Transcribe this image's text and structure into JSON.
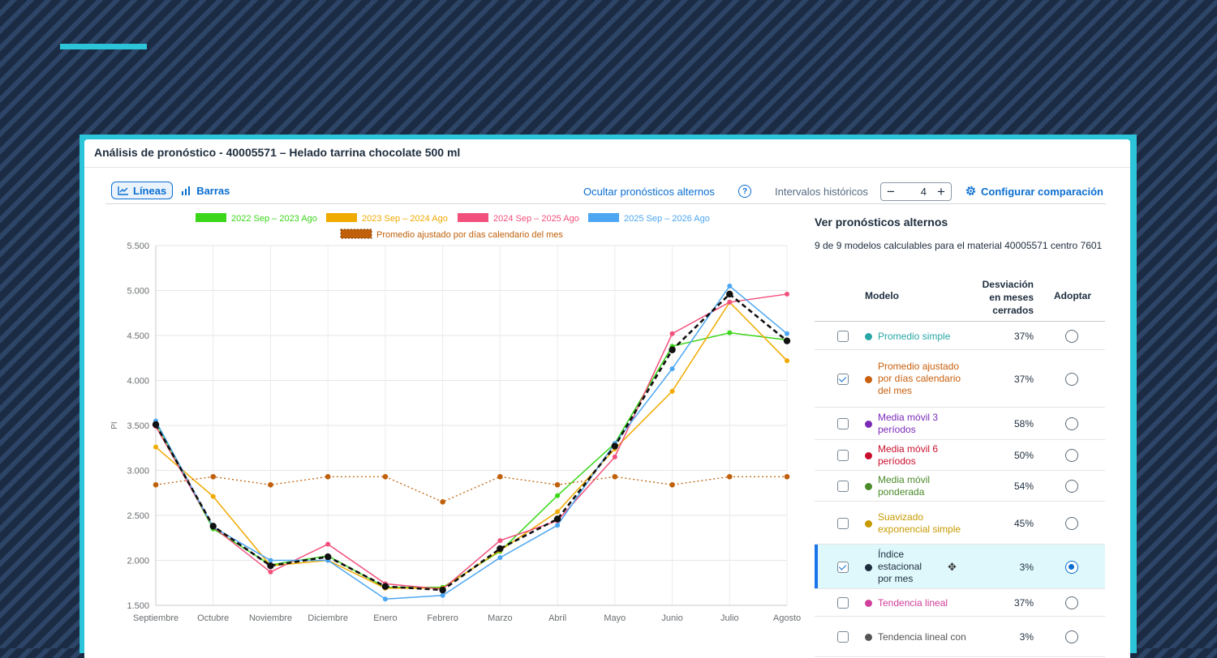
{
  "panel": {
    "title": "Análisis de pronóstico - 40005571 – Helado tarrina chocolate 500 ml"
  },
  "toolbar": {
    "lines_label": "Líneas",
    "bars_label": "Barras",
    "hide_alt_label": "Ocultar pronósticos alternos",
    "hist_label": "Intervalos históricos",
    "hist_value": "4",
    "config_label": "Configurar comparación"
  },
  "chart_data": {
    "type": "line",
    "ylabel": "PI",
    "xlabel": "",
    "categories": [
      "Septiembre",
      "Octubre",
      "Noviembre",
      "Diciembre",
      "Enero",
      "Febrero",
      "Marzo",
      "Abril",
      "Mayo",
      "Junio",
      "Julio",
      "Agosto"
    ],
    "ylim": [
      1500,
      5500
    ],
    "yticks": [
      "5.500",
      "5.000",
      "4.500",
      "4.000",
      "3.500",
      "3.000",
      "2.500",
      "2.000",
      "1.500"
    ],
    "grid": true,
    "legend_position": "top",
    "series": [
      {
        "name": "2022 Sep – 2023 Ago",
        "color": "#3bd61a",
        "values": [
          3530,
          2350,
          1950,
          2050,
          1700,
          1700,
          2100,
          2720,
          3300,
          4380,
          4530,
          4450
        ]
      },
      {
        "name": "2023 Sep – 2024 Ago",
        "color": "#f0aa00",
        "values": [
          3260,
          2710,
          1940,
          2000,
          1690,
          1690,
          2110,
          2540,
          3240,
          3880,
          4870,
          4220
        ]
      },
      {
        "name": "2024 Sep – 2025 Ago",
        "color": "#f2507c",
        "values": [
          3490,
          2370,
          1870,
          2180,
          1740,
          1680,
          2220,
          2440,
          3150,
          4520,
          4870,
          4960
        ]
      },
      {
        "name": "2025 Sep – 2026 Ago",
        "color": "#4ca6f2",
        "values": [
          3550,
          2370,
          2000,
          2000,
          1570,
          1610,
          2030,
          2390,
          3300,
          4130,
          5050,
          4520
        ]
      },
      {
        "name": "Promedio ajustado por días calendario del mes",
        "color": "#c0600a",
        "values": [
          2840,
          2930,
          2840,
          2930,
          2930,
          2650,
          2930,
          2840,
          2930,
          2840,
          2930,
          2930
        ]
      },
      {
        "name": "",
        "color": "#111111",
        "values": [
          3510,
          2380,
          1940,
          2040,
          1710,
          1670,
          2130,
          2460,
          3270,
          4340,
          4960,
          4440
        ]
      }
    ]
  },
  "side": {
    "title": "Ver pronósticos alternos",
    "subtitle": "9 de 9 modelos calculables para el material 40005571 centro 7601",
    "col_model": "Modelo",
    "col_dev": "Desviación en meses cerrados",
    "col_adopt": "Adoptar",
    "rows": [
      {
        "name": "Promedio simple",
        "dev": "37%",
        "color": "#2aa6a6",
        "checked": false,
        "adopted": false
      },
      {
        "name": "Promedio ajustado por días calendario del mes",
        "dev": "37%",
        "color": "#c8600e",
        "checked": true,
        "adopted": false
      },
      {
        "name": "Media móvil 3 períodos",
        "dev": "58%",
        "color": "#7b2ab8",
        "checked": false,
        "adopted": false
      },
      {
        "name": "Media móvil 6 períodos",
        "dev": "50%",
        "color": "#c8102e",
        "checked": false,
        "adopted": false
      },
      {
        "name": "Media móvil ponderada",
        "dev": "54%",
        "color": "#4a8a2a",
        "checked": false,
        "adopted": false
      },
      {
        "name": "Suavizado exponencial simple",
        "dev": "45%",
        "color": "#c79a00",
        "checked": false,
        "adopted": false
      },
      {
        "name": "Índice estacional por mes",
        "dev": "3%",
        "color": "#1d2d3e",
        "checked": true,
        "adopted": true
      },
      {
        "name": "Tendencia lineal",
        "dev": "37%",
        "color": "#d0409a",
        "checked": false,
        "adopted": false
      },
      {
        "name": "Tendencia lineal con",
        "dev": "3%",
        "color": "#555555",
        "checked": false,
        "adopted": false
      }
    ]
  }
}
